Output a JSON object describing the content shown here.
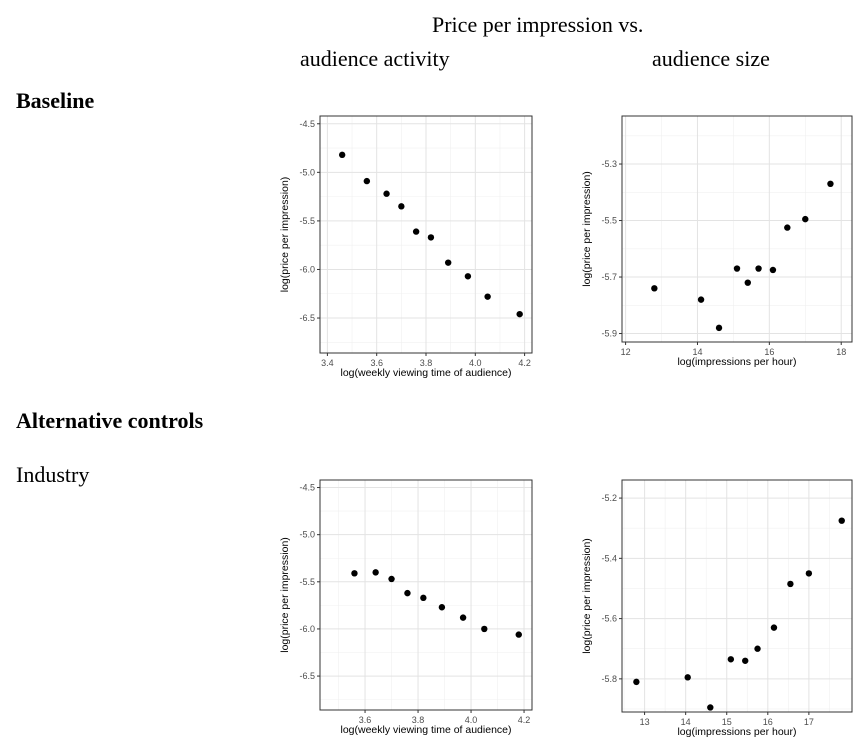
{
  "header": {
    "title": "Price per impression vs.",
    "col1": "audience activity",
    "col2": "audience size"
  },
  "sections": {
    "baseline": "Baseline",
    "alternative": "Alternative controls",
    "industry": "Industry"
  },
  "chart_data": [
    {
      "id": "baseline-activity",
      "type": "scatter",
      "xlabel": "log(weekly viewing time of audience)",
      "ylabel": "log(price per impression)",
      "xlim": [
        3.37,
        4.23
      ],
      "ylim": [
        -6.86,
        -4.42
      ],
      "xticks": [
        3.4,
        3.6,
        3.8,
        4.0,
        4.2
      ],
      "yticks": [
        -6.5,
        -6.0,
        -5.5,
        -5.0,
        -4.5
      ],
      "xtick_labels": [
        "3.4",
        "3.6",
        "3.8",
        "4.0",
        "4.2"
      ],
      "ytick_labels": [
        "-6.5",
        "-6.0",
        "-5.5",
        "-5.0",
        "-4.5"
      ],
      "grid": true,
      "x": [
        3.46,
        3.56,
        3.64,
        3.7,
        3.76,
        3.82,
        3.89,
        3.97,
        4.05,
        4.18
      ],
      "y": [
        -4.82,
        -5.09,
        -5.22,
        -5.35,
        -5.61,
        -5.67,
        -5.93,
        -6.07,
        -6.28,
        -6.46
      ]
    },
    {
      "id": "baseline-size",
      "type": "scatter",
      "xlabel": "log(impressions per hour)",
      "ylabel": "log(price per impression)",
      "xlim": [
        11.9,
        18.3
      ],
      "ylim": [
        -5.93,
        -5.13
      ],
      "xticks": [
        12,
        14,
        16,
        18
      ],
      "yticks": [
        -5.9,
        -5.7,
        -5.5,
        -5.3
      ],
      "xtick_labels": [
        "12",
        "14",
        "16",
        "18"
      ],
      "ytick_labels": [
        "-5.9",
        "-5.7",
        "-5.5",
        "-5.3"
      ],
      "grid": true,
      "x": [
        12.8,
        14.1,
        14.6,
        15.1,
        15.4,
        15.7,
        16.1,
        16.5,
        17.0,
        17.7
      ],
      "y": [
        -5.74,
        -5.78,
        -5.88,
        -5.67,
        -5.72,
        -5.67,
        -5.675,
        -5.525,
        -5.495,
        -5.37
      ]
    },
    {
      "id": "industry-activity",
      "type": "scatter",
      "xlabel": "log(weekly viewing time of audience)",
      "ylabel": "log(price per impression)",
      "xlim": [
        3.43,
        4.23
      ],
      "ylim": [
        -6.86,
        -4.42
      ],
      "xticks": [
        3.6,
        3.8,
        4.0,
        4.2
      ],
      "yticks": [
        -6.5,
        -6.0,
        -5.5,
        -5.0,
        -4.5
      ],
      "xtick_labels": [
        "3.6",
        "3.8",
        "4.0",
        "4.2"
      ],
      "ytick_labels": [
        "-6.5",
        "-6.0",
        "-5.5",
        "-5.0",
        "-4.5"
      ],
      "grid": true,
      "x": [
        3.56,
        3.64,
        3.7,
        3.76,
        3.82,
        3.89,
        3.97,
        4.05,
        4.18
      ],
      "y": [
        -5.41,
        -5.4,
        -5.47,
        -5.62,
        -5.67,
        -5.77,
        -5.88,
        -6.0,
        -6.06
      ]
    },
    {
      "id": "industry-size",
      "type": "scatter",
      "xlabel": "log(impressions per hour)",
      "ylabel": "log(price per impression)",
      "xlim": [
        12.45,
        18.05
      ],
      "ylim": [
        -5.91,
        -5.14
      ],
      "xticks": [
        13,
        14,
        15,
        16,
        17
      ],
      "yticks": [
        -5.8,
        -5.6,
        -5.4,
        -5.2
      ],
      "xtick_labels": [
        "13",
        "14",
        "15",
        "16",
        "17"
      ],
      "ytick_labels": [
        "-5.8",
        "-5.6",
        "-5.4",
        "-5.2"
      ],
      "grid": true,
      "x": [
        12.8,
        14.05,
        14.6,
        15.1,
        15.45,
        15.75,
        16.15,
        16.55,
        17.0,
        17.8
      ],
      "y": [
        -5.81,
        -5.795,
        -5.895,
        -5.735,
        -5.74,
        -5.7,
        -5.63,
        -5.485,
        -5.45,
        -5.275
      ]
    }
  ]
}
